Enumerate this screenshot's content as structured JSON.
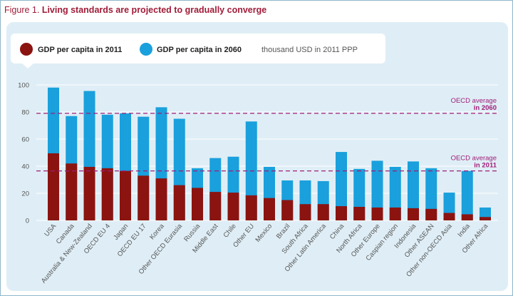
{
  "figure": {
    "number_label": "Figure 1.",
    "title": "Living standards are projected to gradually converge"
  },
  "colors": {
    "series_2011": "#8b1410",
    "series_2060": "#1aa0dc",
    "reference_line": "#a01c78",
    "title": "#a01c38",
    "panel_bg": "#dfeef6"
  },
  "chart_data": {
    "type": "bar",
    "stacked_overlap": true,
    "unit_note": "thousand USD in 2011 PPP",
    "ylim": [
      0,
      100
    ],
    "yticks": [
      0,
      20,
      40,
      60,
      80,
      100
    ],
    "grid": true,
    "legend_position": "top-left",
    "categories": [
      "USA",
      "Canada",
      "Australia & New-Zealand",
      "OECD EU 4",
      "Japan",
      "OECD EU 17",
      "Korea",
      "Other OECD Eurasia",
      "Russia",
      "Middle East",
      "Chile",
      "Other EU",
      "Mexico",
      "Brazil",
      "South Africa",
      "Other Latin America",
      "China",
      "North Africa",
      "Other Europe",
      "Caspian region",
      "Indonesia",
      "Other ASEAN",
      "Other non-OECD Asia",
      "India",
      "Other Africa"
    ],
    "series": [
      {
        "name": "GDP per capita in 2011",
        "color": "#8b1410",
        "values": [
          49.5,
          42,
          39.5,
          38.5,
          36.5,
          33,
          31,
          26,
          24,
          21,
          20.5,
          18.5,
          16.5,
          15,
          12,
          12,
          10.5,
          10,
          9.5,
          9.5,
          9,
          8.5,
          5.5,
          4.5,
          2.5
        ]
      },
      {
        "name": "GDP per capita in 2060",
        "color": "#1aa0dc",
        "values": [
          98,
          77,
          95.5,
          78,
          79,
          76.5,
          83.5,
          75,
          38.5,
          46,
          47,
          73,
          39.5,
          29.5,
          29.5,
          29,
          50.5,
          38,
          44,
          39.5,
          43.5,
          38.5,
          20.5,
          36.5,
          9.5
        ]
      }
    ],
    "reference_lines": [
      {
        "label": "OECD average",
        "sublabel": "in 2060",
        "value": 79
      },
      {
        "label": "OECD average",
        "sublabel": "in 2011",
        "value": 36.5
      }
    ]
  }
}
